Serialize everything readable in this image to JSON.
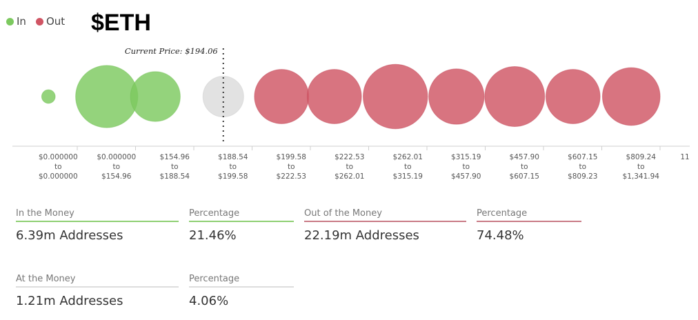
{
  "legend": {
    "in_label": "In",
    "out_label": "Out",
    "in_color": "#7cc95f",
    "out_color": "#d05564",
    "at_color": "#dddddd"
  },
  "title": "$ETH",
  "current_price_label": "Current Price: $194.06",
  "chart_data": {
    "type": "bubble",
    "title": "$ETH",
    "current_price": 194.06,
    "categories": [
      {
        "from": "$0.000000",
        "to": "$0.000000",
        "status": "in",
        "relative_size": 0.12
      },
      {
        "from": "$0.000000",
        "to": "$154.96",
        "status": "in",
        "relative_size": 0.55
      },
      {
        "from": "$154.96",
        "to": "$188.54",
        "status": "in",
        "relative_size": 0.44
      },
      {
        "from": "$188.54",
        "to": "$199.58",
        "status": "at",
        "relative_size": 0.36
      },
      {
        "from": "$199.58",
        "to": "$222.53",
        "status": "out",
        "relative_size": 0.48
      },
      {
        "from": "$222.53",
        "to": "$262.01",
        "status": "out",
        "relative_size": 0.48
      },
      {
        "from": "$262.01",
        "to": "$315.19",
        "status": "out",
        "relative_size": 0.57
      },
      {
        "from": "$315.19",
        "to": "$457.90",
        "status": "out",
        "relative_size": 0.49
      },
      {
        "from": "$457.90",
        "to": "$607.15",
        "status": "out",
        "relative_size": 0.53
      },
      {
        "from": "$607.15",
        "to": "$809.23",
        "status": "out",
        "relative_size": 0.48
      },
      {
        "from": "$809.24",
        "to": "$1,341.94",
        "status": "out",
        "relative_size": 0.51
      }
    ],
    "truncated_next_label": "11"
  },
  "stats": {
    "in_the_money": {
      "label": "In the Money",
      "value": "6.39m Addresses"
    },
    "in_percentage": {
      "label": "Percentage",
      "value": "21.46%"
    },
    "out_of_the_money": {
      "label": "Out of the Money",
      "value": "22.19m Addresses"
    },
    "out_percentage": {
      "label": "Percentage",
      "value": "74.48%"
    },
    "at_the_money": {
      "label": "At the Money",
      "value": "1.21m Addresses"
    },
    "at_percentage": {
      "label": "Percentage",
      "value": "4.06%"
    }
  }
}
